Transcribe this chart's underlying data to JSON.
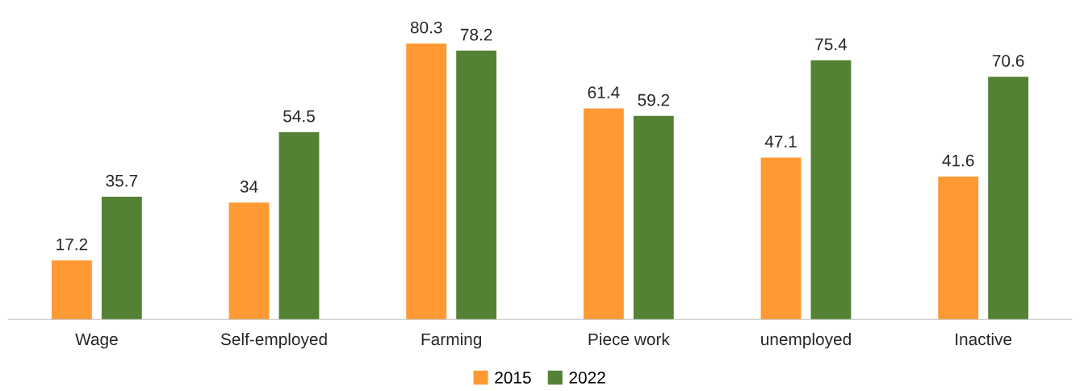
{
  "chart_data": {
    "type": "bar",
    "categories": [
      "Wage",
      "Self-employed",
      "Farming",
      "Piece work",
      "unemployed",
      "Inactive"
    ],
    "series": [
      {
        "name": "2015",
        "color": "#ff9933",
        "values": [
          17.2,
          34,
          80.3,
          61.4,
          47.1,
          41.6
        ]
      },
      {
        "name": "2022",
        "color": "#548235",
        "values": [
          35.7,
          54.5,
          78.2,
          59.2,
          75.4,
          70.6
        ]
      }
    ],
    "data_labels": true,
    "legend": "bottom",
    "grid": false
  }
}
